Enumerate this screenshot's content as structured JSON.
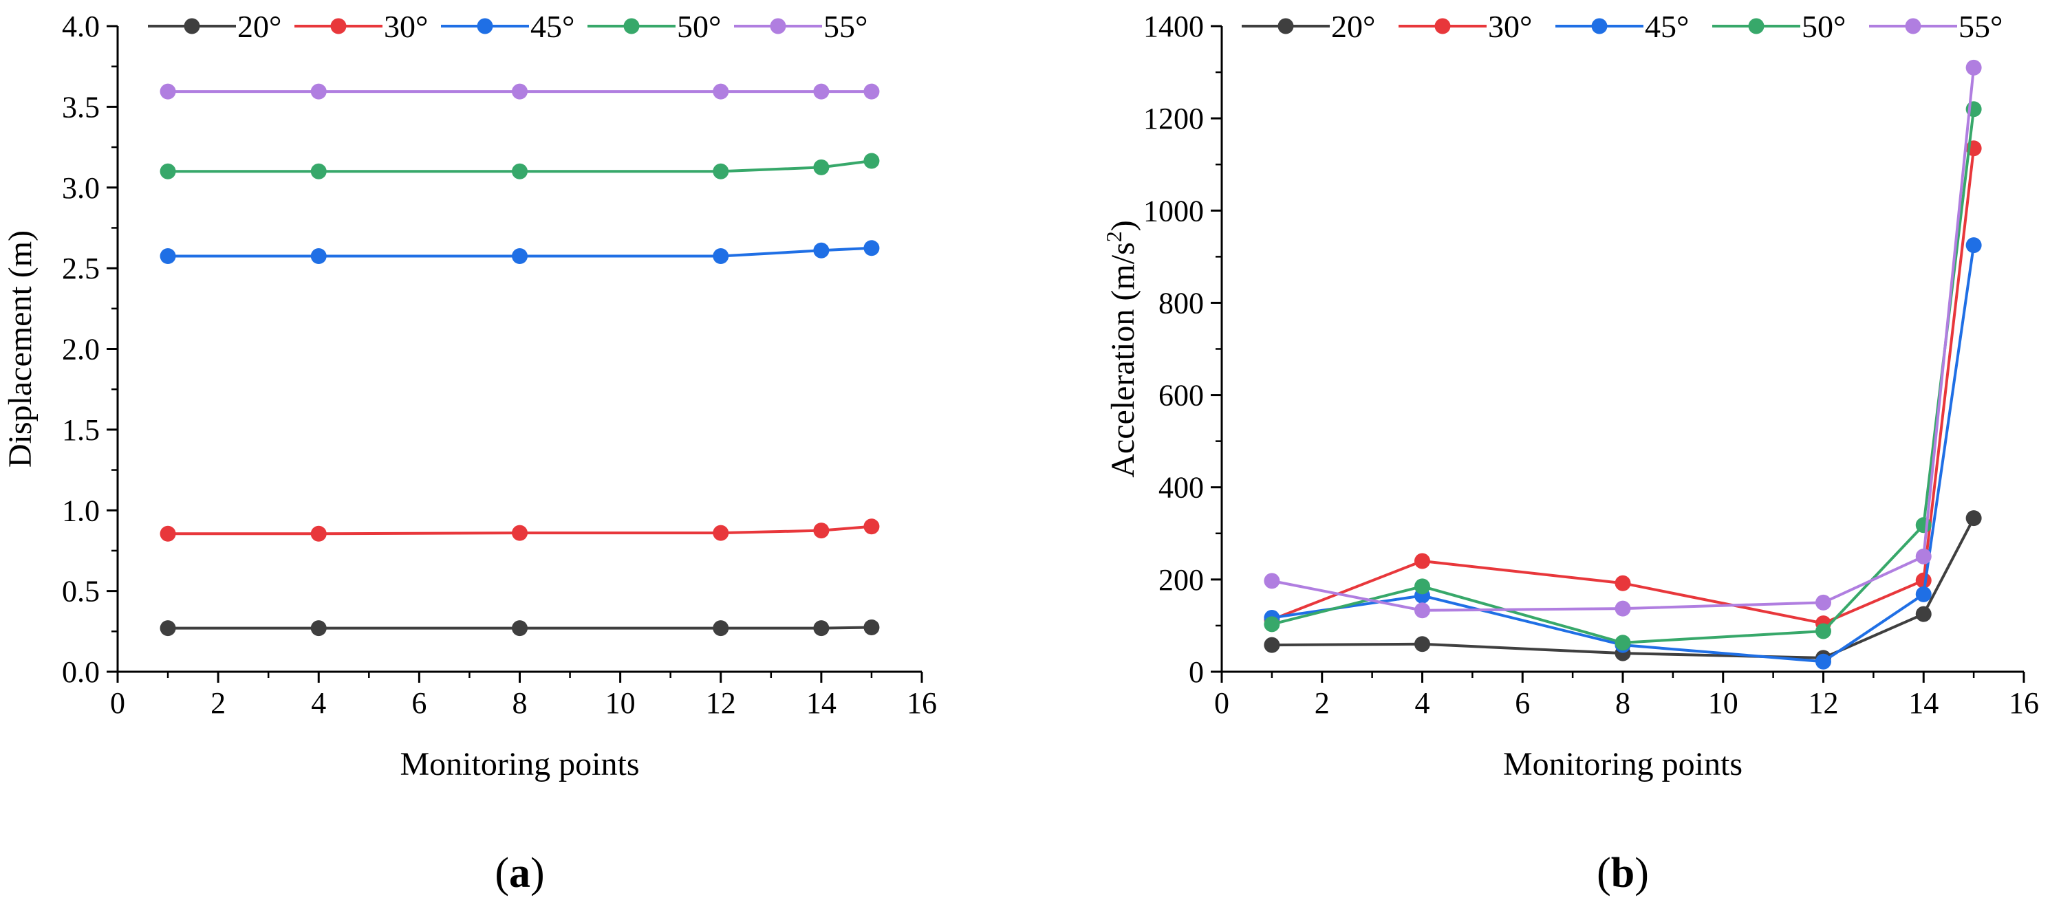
{
  "chart_data": [
    {
      "type": "line",
      "panel_label": "a",
      "xlabel": "Monitoring points",
      "ylabel": "Displacement (m)",
      "xlim": [
        0,
        16
      ],
      "ylim": [
        0,
        4.0
      ],
      "xticks": [
        "0",
        "2",
        "4",
        "6",
        "8",
        "10",
        "12",
        "14",
        "16"
      ],
      "yticks": [
        "0.0",
        "0.5",
        "1.0",
        "1.5",
        "2.0",
        "2.5",
        "3.0",
        "3.5",
        "4.0"
      ],
      "legend_position": "top",
      "x": [
        1,
        4,
        8,
        12,
        14,
        15
      ],
      "series": [
        {
          "name": "20°",
          "color": "#3f3f3f",
          "values": [
            0.27,
            0.27,
            0.27,
            0.27,
            0.27,
            0.275
          ]
        },
        {
          "name": "30°",
          "color": "#e8373b",
          "values": [
            0.855,
            0.855,
            0.86,
            0.86,
            0.875,
            0.9
          ]
        },
        {
          "name": "45°",
          "color": "#1f6fe5",
          "values": [
            2.575,
            2.575,
            2.575,
            2.575,
            2.61,
            2.625
          ]
        },
        {
          "name": "50°",
          "color": "#37a86a",
          "values": [
            3.1,
            3.1,
            3.1,
            3.1,
            3.125,
            3.165
          ]
        },
        {
          "name": "55°",
          "color": "#b07ee0",
          "values": [
            3.595,
            3.595,
            3.595,
            3.595,
            3.595,
            3.595
          ]
        }
      ]
    },
    {
      "type": "line",
      "panel_label": "b",
      "xlabel": "Monitoring points",
      "ylabel_main": "Acceleration (m/s",
      "ylabel_sup": "2",
      "ylabel_close": ")",
      "xlim": [
        0,
        16
      ],
      "ylim": [
        0,
        1400
      ],
      "xticks": [
        "0",
        "2",
        "4",
        "6",
        "8",
        "10",
        "12",
        "14",
        "16"
      ],
      "yticks": [
        "0",
        "200",
        "400",
        "600",
        "800",
        "1000",
        "1200",
        "1400"
      ],
      "legend_position": "top",
      "x": [
        1,
        4,
        8,
        12,
        14,
        15
      ],
      "series": [
        {
          "name": "20°",
          "color": "#3f3f3f",
          "values": [
            58,
            60,
            40,
            30,
            125,
            333
          ]
        },
        {
          "name": "30°",
          "color": "#e8373b",
          "values": [
            113,
            240,
            192,
            105,
            198,
            1135
          ]
        },
        {
          "name": "45°",
          "color": "#1f6fe5",
          "values": [
            117,
            165,
            58,
            22,
            168,
            925
          ]
        },
        {
          "name": "50°",
          "color": "#37a86a",
          "values": [
            103,
            185,
            63,
            88,
            318,
            1220
          ]
        },
        {
          "name": "55°",
          "color": "#b07ee0",
          "values": [
            197,
            133,
            137,
            150,
            250,
            1310
          ]
        }
      ]
    }
  ]
}
